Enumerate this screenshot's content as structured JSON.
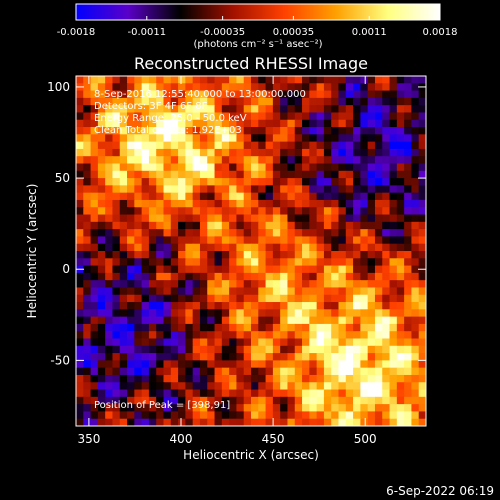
{
  "colorbar": {
    "ticks": [
      "-0.0018",
      "-0.0011",
      "-0.00035",
      "0.00035",
      "0.0011",
      "0.0018"
    ],
    "tick_values": [
      -0.0018,
      -0.0011,
      -0.00035,
      0.00035,
      0.0011,
      0.0018
    ],
    "range": [
      -0.0018,
      0.0018
    ],
    "unit_label": "(photons cm⁻² s⁻¹ asec⁻²)",
    "colormap": [
      "#0000ff",
      "#5a00c8",
      "#000000",
      "#a01000",
      "#ff4000",
      "#ffa000",
      "#ffff80",
      "#ffffff"
    ]
  },
  "chart_data": {
    "type": "heatmap",
    "title": "Reconstructed RHESSI Image",
    "xlabel": "Heliocentric X (arcsec)",
    "ylabel": "Heliocentric Y (arcsec)",
    "xlim": [
      343,
      533
    ],
    "ylim": [
      -86,
      106
    ],
    "x_ticks": [
      350,
      400,
      450,
      500
    ],
    "y_ticks": [
      -50,
      0,
      50,
      100
    ],
    "annotations": [
      "8-Sep-2016 12:55:40.000 to 13:00:00.000",
      "Detectors: 3F 4F 6F 8F",
      "Energy Range: 25.0 - 50.0 keV",
      "Clean     Total counts: 1.92E+03"
    ],
    "peak_label": "Position of Peak = [398,91]",
    "peak": [
      398,
      91
    ]
  },
  "footer": {
    "timestamp": "6-Sep-2022 06:19"
  }
}
